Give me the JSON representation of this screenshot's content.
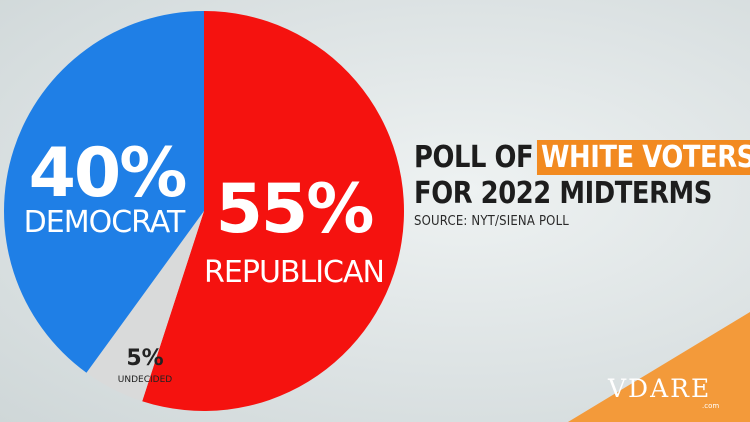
{
  "header": {
    "title_part1": "POLL OF",
    "title_highlight": "WHITE VOTERS",
    "title_line2": "FOR 2022 MIDTERMS",
    "source": "SOURCE: NYT/SIENA POLL"
  },
  "colors": {
    "democrat": "#1f7fe6",
    "republican": "#f5120f",
    "undecided": "#d9dada",
    "highlight": "#f28a20",
    "corner": "#f39a3a"
  },
  "chart_data": {
    "type": "pie",
    "start": "12 o'clock",
    "direction": "clockwise",
    "slices": [
      {
        "label": "REPUBLICAN",
        "value": 55,
        "display": "55%",
        "color": "#f5120f"
      },
      {
        "label": "UNDECIDED",
        "value": 5,
        "display": "5%",
        "color": "#d9dada"
      },
      {
        "label": "DEMOCRAT",
        "value": 40,
        "display": "40%",
        "color": "#1f7fe6"
      }
    ]
  },
  "logo": {
    "text": "VDARE",
    "sub": ".com"
  }
}
